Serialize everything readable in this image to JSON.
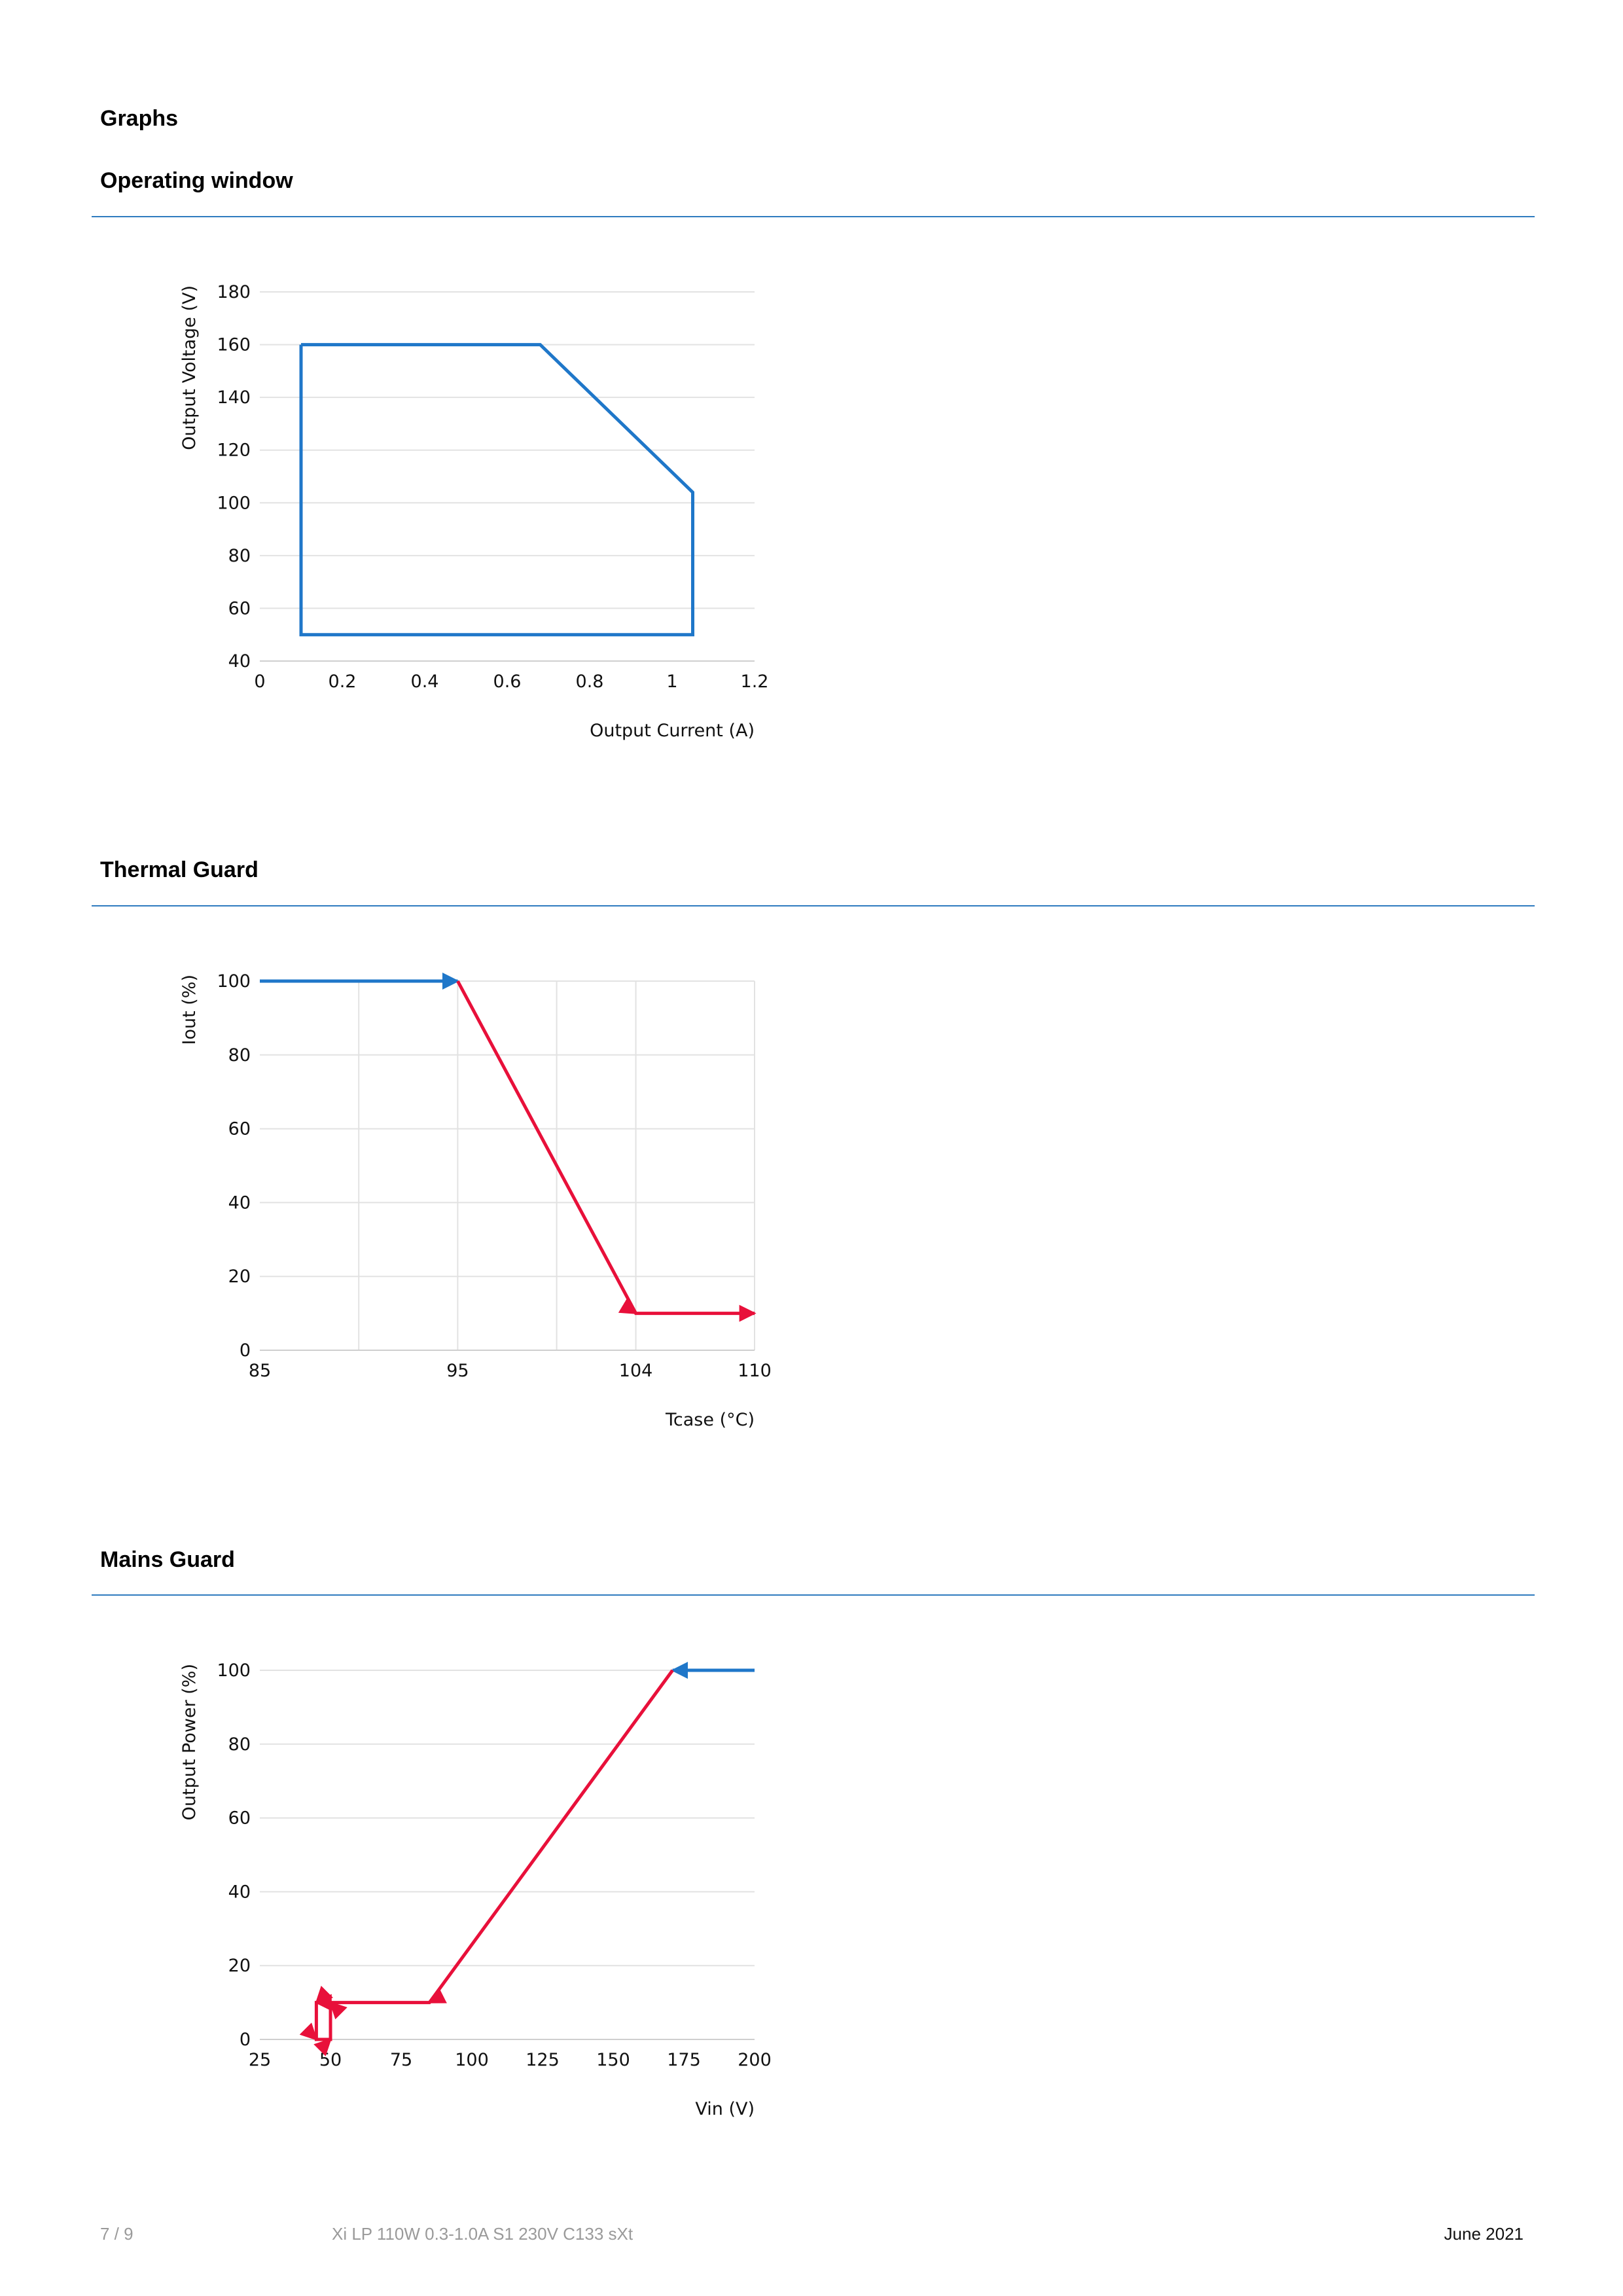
{
  "page_heading": "Graphs",
  "sections": [
    {
      "title": "Operating window"
    },
    {
      "title": "Thermal Guard"
    },
    {
      "title": "Mains Guard"
    }
  ],
  "colors": {
    "rule": "#2f7bbf",
    "blue": "#1f77c9",
    "red": "#e8103a",
    "grid": "#e2e2e2"
  },
  "chart_data": [
    {
      "type": "line",
      "title": "Operating window",
      "xlabel": "Output Current (A)",
      "ylabel": "Output Voltage (V)",
      "xlim": [
        0,
        1.2
      ],
      "ylim": [
        40,
        180
      ],
      "xticks": [
        0,
        0.2,
        0.4,
        0.6,
        0.8,
        1,
        1.2
      ],
      "yticks": [
        40,
        60,
        80,
        100,
        120,
        140,
        160,
        180
      ],
      "grid": "horizontal",
      "series": [
        {
          "color": "#1f77c9",
          "x": [
            0.1,
            0.68,
            1.05,
            1.05,
            0.1,
            0.1
          ],
          "y": [
            160,
            160,
            104,
            50,
            50,
            160
          ]
        }
      ]
    },
    {
      "type": "line",
      "title": "Thermal Guard",
      "xlabel": "Tcase (°C)",
      "ylabel": "Iout (%)",
      "xlim": [
        85,
        110
      ],
      "ylim": [
        0,
        100
      ],
      "xticks": [
        85,
        95,
        104,
        110
      ],
      "yticks": [
        0,
        20,
        40,
        60,
        80,
        100
      ],
      "grid": "both",
      "series": [
        {
          "color": "#1f77c9",
          "x": [
            85,
            95
          ],
          "y": [
            100,
            100
          ]
        },
        {
          "color": "#e8103a",
          "x": [
            95,
            104,
            110
          ],
          "y": [
            100,
            10,
            10
          ]
        }
      ]
    },
    {
      "type": "line",
      "title": "Mains Guard",
      "xlabel": "Vin (V)",
      "ylabel": "Output Power (%)",
      "xlim": [
        25,
        200
      ],
      "ylim": [
        0,
        100
      ],
      "xticks": [
        25,
        50,
        75,
        100,
        125,
        150,
        175,
        200
      ],
      "yticks": [
        0,
        20,
        40,
        60,
        80,
        100
      ],
      "grid": "horizontal",
      "series": [
        {
          "color": "#1f77c9",
          "x": [
            200,
            171
          ],
          "y": [
            100,
            100
          ]
        },
        {
          "color": "#e8103a",
          "x": [
            171,
            85,
            45,
            45,
            50,
            50,
            45
          ],
          "y": [
            100,
            10,
            10,
            0,
            0,
            10,
            10
          ]
        }
      ]
    }
  ],
  "footer": {
    "page": "7 / 9",
    "product": "Xi LP 110W 0.3-1.0A S1 230V C133 sXt",
    "date": "June 2021"
  }
}
